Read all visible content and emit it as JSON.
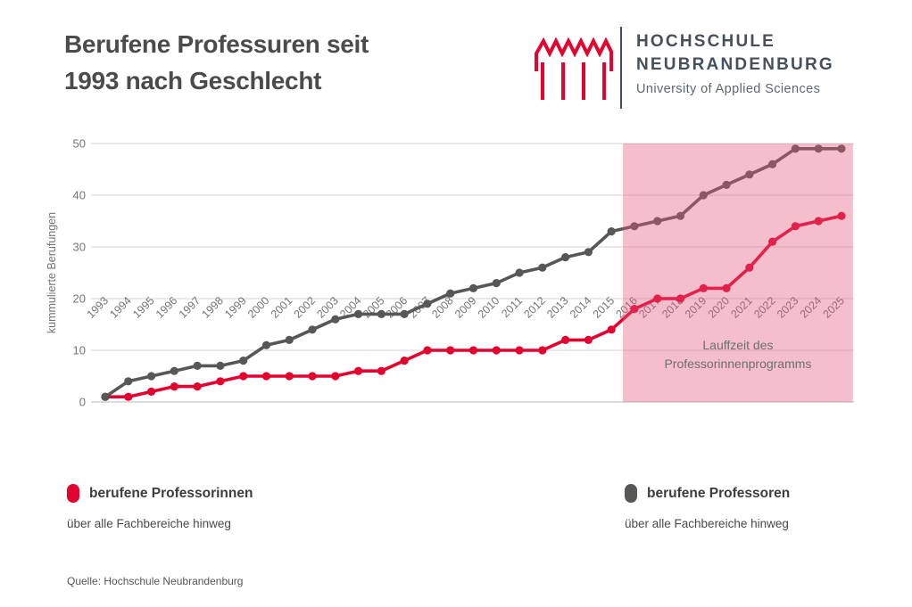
{
  "header": {
    "title_line1": "Berufene Professuren seit",
    "title_line2": "1993 nach Geschlecht"
  },
  "logo": {
    "name_line1": "HOCHSCHULE",
    "name_line2": "NEUBRANDENBURG",
    "subtitle": "University of Applied Sciences",
    "glyph_color": "#e4032e",
    "text_color": "#45515a"
  },
  "chart_data": {
    "type": "line",
    "title": "Berufene Professuren seit 1993 nach Geschlecht",
    "xlabel": "",
    "ylabel": "kummulierte Berufungen",
    "ylim": [
      0,
      50
    ],
    "yticks": [
      0,
      10,
      20,
      30,
      40,
      50
    ],
    "grid": true,
    "x": [
      1993,
      1994,
      1995,
      1996,
      1997,
      1998,
      1999,
      2000,
      2001,
      2002,
      2003,
      2004,
      2005,
      2006,
      2007,
      2008,
      2009,
      2010,
      2011,
      2012,
      2013,
      2014,
      2015,
      2016,
      2017,
      2018,
      2019,
      2020,
      2021,
      2022,
      2023,
      2024,
      2025
    ],
    "series": [
      {
        "name": "berufene Professorinnen",
        "color": "#e4032e",
        "values": [
          1,
          1,
          2,
          3,
          3,
          4,
          5,
          5,
          5,
          5,
          5,
          6,
          6,
          8,
          10,
          10,
          10,
          10,
          10,
          10,
          12,
          12,
          14,
          18,
          20,
          20,
          22,
          22,
          26,
          31,
          34,
          35,
          36
        ]
      },
      {
        "name": "berufene Professoren",
        "color": "#575756",
        "values": [
          1,
          4,
          5,
          6,
          7,
          7,
          8,
          11,
          12,
          14,
          16,
          17,
          17,
          17,
          19,
          21,
          22,
          23,
          25,
          26,
          28,
          29,
          33,
          34,
          35,
          36,
          40,
          42,
          44,
          46,
          49,
          49,
          49
        ]
      }
    ],
    "highlight_region": {
      "x_start": 2015.5,
      "x_end": 2025.5,
      "color": "#e25578",
      "opacity": 0.38,
      "label_line1": "Lauffzeit des",
      "label_line2": "Professorinnenprogramms",
      "label_color": "#6e6e6e"
    },
    "axis_text_color": "#757575",
    "gridline_color": "#dedede",
    "baseline_color": "#c6c6c6"
  },
  "legend": {
    "items": [
      {
        "label": "berufene Professorinnen",
        "sublabel": "über alle Fachbereiche hinweg"
      },
      {
        "label": "berufene Professoren",
        "sublabel": "über alle Fachbereiche hinweg"
      }
    ]
  },
  "source": "Quelle: Hochschule Neubrandenburg"
}
